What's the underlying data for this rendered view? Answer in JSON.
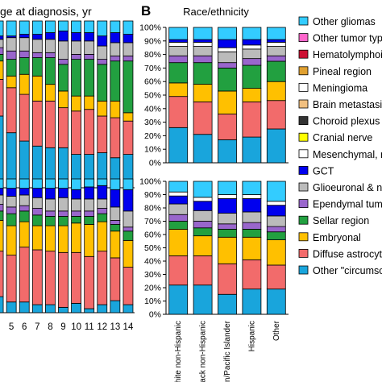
{
  "panel_a": {
    "title": "ge at diagnosis, yr"
  },
  "panel_b": {
    "letter": "B",
    "title": "Race/ethnicity"
  },
  "legend_entries": [
    {
      "label": "Other gliomas",
      "color": "#33CCFF",
      "icon": "swatch"
    },
    {
      "label": "Other tumor type",
      "color": "#FF66CC",
      "icon": "swatch"
    },
    {
      "label": "Hematolymphoid",
      "color": "#CC1133",
      "icon": "swatch"
    },
    {
      "label": "Pineal region",
      "color": "#E0A030",
      "icon": "swatch"
    },
    {
      "label": "Meningioma",
      "color": "#FFFFFF",
      "icon": "swatch"
    },
    {
      "label": "Brain metastasis",
      "color": "#F2C080",
      "icon": "swatch"
    },
    {
      "label": "Choroid plexus",
      "color": "#333333",
      "icon": "swatch"
    },
    {
      "label": "Cranial nerve",
      "color": "#FFFF00",
      "icon": "swatch"
    },
    {
      "label": "Mesenchymal, n",
      "color": "#FFFFFF",
      "icon": "swatch"
    },
    {
      "label": "GCT",
      "color": "#0000EE",
      "icon": "swatch"
    },
    {
      "label": "Glioeuronal & ne",
      "color": "#BBBBBB",
      "icon": "swatch"
    },
    {
      "label": "Ependymal tumo",
      "color": "#9966CC",
      "icon": "swatch"
    },
    {
      "label": "Sellar region",
      "color": "#22A040",
      "icon": "swatch"
    },
    {
      "label": "Embryonal",
      "color": "#FFC000",
      "icon": "swatch"
    },
    {
      "label": "Diffuse astrocyti",
      "color": "#F26B6B",
      "icon": "swatch"
    },
    {
      "label": "Other \"circumscr",
      "color": "#19A5DC",
      "icon": "swatch"
    }
  ],
  "chart_data": [
    {
      "type": "bar",
      "stacked": true,
      "panel": "A-top",
      "title": "ge at diagnosis, yr",
      "categories": [
        "",
        "5",
        "6",
        "7",
        "8",
        "9",
        "10",
        "11",
        "12",
        "13",
        "14"
      ],
      "ylim": [
        0,
        100
      ],
      "series": [
        {
          "name": "Other \"circumscr",
          "color": "#19A5DC",
          "values": [
            43,
            33,
            28,
            25,
            24,
            24,
            20,
            20,
            21,
            18,
            20
          ]
        },
        {
          "name": "Diffuse astrocyti",
          "color": "#F26B6B",
          "values": [
            22,
            27,
            28,
            27,
            28,
            24,
            26,
            27,
            22,
            24,
            20
          ]
        },
        {
          "name": "Embryonal",
          "color": "#FFC000",
          "values": [
            11,
            7,
            12,
            15,
            10,
            10,
            9,
            8,
            9,
            10,
            5
          ]
        },
        {
          "name": "Sellar region",
          "color": "#22A040",
          "values": [
            4,
            10,
            10,
            11,
            16,
            16,
            22,
            22,
            22,
            24,
            31
          ]
        },
        {
          "name": "Ependymal tumo",
          "color": "#9966CC",
          "values": [
            4,
            5,
            4,
            3,
            3,
            3,
            3,
            3,
            3,
            3,
            3
          ]
        },
        {
          "name": "Glioeuronal & ne",
          "color": "#BBBBBB",
          "values": [
            5,
            8,
            8,
            8,
            8,
            11,
            8,
            8,
            8,
            8,
            8
          ]
        },
        {
          "name": "GCT",
          "color": "#0000EE",
          "values": [
            2,
            1,
            2,
            3,
            4,
            6,
            5,
            5,
            6,
            6,
            5
          ]
        },
        {
          "name": "Other gliomas",
          "color": "#33CCFF",
          "values": [
            9,
            9,
            8,
            8,
            7,
            6,
            7,
            7,
            9,
            7,
            8
          ]
        }
      ]
    },
    {
      "type": "bar",
      "stacked": true,
      "panel": "A-bottom",
      "categories": [
        "",
        "5",
        "6",
        "7",
        "8",
        "9",
        "10",
        "11",
        "12",
        "13",
        "14"
      ],
      "ylim": [
        0,
        100
      ],
      "series": [
        {
          "name": "Other \"circumscr",
          "color": "#19A5DC",
          "values": [
            12,
            8,
            8,
            6,
            6,
            4,
            7,
            3,
            6,
            9,
            6
          ]
        },
        {
          "name": "Diffuse astrocyti",
          "color": "#F26B6B",
          "values": [
            34,
            35,
            41,
            41,
            40,
            41,
            38,
            39,
            40,
            32,
            28
          ]
        },
        {
          "name": "Embryonal",
          "color": "#FFC000",
          "values": [
            23,
            22,
            19,
            18,
            19,
            20,
            22,
            24,
            22,
            20,
            20
          ]
        },
        {
          "name": "Sellar region",
          "color": "#22A040",
          "values": [
            7,
            9,
            8,
            8,
            7,
            7,
            5,
            6,
            6,
            5,
            7
          ]
        },
        {
          "name": "Ependymal tumo",
          "color": "#9966CC",
          "values": [
            5,
            5,
            4,
            5,
            4,
            4,
            4,
            4,
            4,
            3,
            3
          ]
        },
        {
          "name": "Glioeuronal & ne",
          "color": "#BBBBBB",
          "values": [
            7,
            8,
            8,
            8,
            9,
            10,
            9,
            9,
            7,
            10,
            12
          ]
        },
        {
          "name": "GCT",
          "color": "#0000EE",
          "values": [
            5,
            6,
            5,
            7,
            8,
            7,
            7,
            9,
            10,
            13,
            16
          ]
        },
        {
          "name": "Other gliomas",
          "color": "#33CCFF",
          "values": [
            7,
            7,
            7,
            7,
            7,
            7,
            8,
            6,
            5,
            8,
            8
          ]
        }
      ]
    },
    {
      "type": "bar",
      "stacked": true,
      "panel": "B-top",
      "title": "Race/ethnicity",
      "categories": [
        "White non-Hispanic",
        "Black non-Hispanic",
        "Asian/Pacific Islander",
        "Hispanic",
        "Other"
      ],
      "ylim": [
        0,
        100
      ],
      "yticks": [
        "0%",
        "10%",
        "20%",
        "30%",
        "40%",
        "50%",
        "60%",
        "70%",
        "80%",
        "90%",
        "100%"
      ],
      "series": [
        {
          "name": "Other \"circumscr",
          "color": "#19A5DC",
          "values": [
            26,
            21,
            17,
            19,
            25
          ]
        },
        {
          "name": "Diffuse astrocyti",
          "color": "#F26B6B",
          "values": [
            23,
            24,
            19,
            26,
            21
          ]
        },
        {
          "name": "Embryonal",
          "color": "#FFC000",
          "values": [
            10,
            13,
            17,
            10,
            14
          ]
        },
        {
          "name": "Sellar region",
          "color": "#22A040",
          "values": [
            15,
            16,
            17,
            17,
            15
          ]
        },
        {
          "name": "Ependymal tumo",
          "color": "#9966CC",
          "values": [
            5,
            5,
            4,
            5,
            4
          ]
        },
        {
          "name": "Glioeuronal & ne",
          "color": "#BBBBBB",
          "values": [
            7,
            7,
            8,
            7,
            7
          ]
        },
        {
          "name": "Meningioma",
          "color": "#FFFFFF",
          "values": [
            3,
            3,
            3,
            3,
            3
          ]
        },
        {
          "name": "GCT",
          "color": "#0000EE",
          "values": [
            2,
            2,
            6,
            4,
            2
          ]
        },
        {
          "name": "Other gliomas",
          "color": "#33CCFF",
          "values": [
            9,
            9,
            9,
            9,
            9
          ]
        }
      ]
    },
    {
      "type": "bar",
      "stacked": true,
      "panel": "B-bottom",
      "categories": [
        "White non-Hispanic",
        "Black non-Hispanic",
        "Asian/Pacific Islander",
        "Hispanic",
        "Other"
      ],
      "xlabels": [
        "White non-Hispanic",
        "Black non-Hispanic",
        "Asian/Pacific Islander",
        "Hispanic",
        "Other"
      ],
      "ylim": [
        0,
        100
      ],
      "yticks": [
        "0%",
        "10%",
        "20%",
        "30%",
        "40%",
        "50%",
        "60%",
        "70%",
        "80%",
        "90%",
        "100%"
      ],
      "series": [
        {
          "name": "Other \"circumscr",
          "color": "#19A5DC",
          "values": [
            22,
            22,
            15,
            19,
            19
          ]
        },
        {
          "name": "Diffuse astrocyti",
          "color": "#F26B6B",
          "values": [
            22,
            22,
            23,
            22,
            18
          ]
        },
        {
          "name": "Embryonal",
          "color": "#FFC000",
          "values": [
            20,
            15,
            20,
            17,
            19
          ]
        },
        {
          "name": "Sellar region",
          "color": "#22A040",
          "values": [
            6,
            6,
            6,
            6,
            6
          ]
        },
        {
          "name": "Ependymal tumo",
          "color": "#9966CC",
          "values": [
            5,
            5,
            4,
            5,
            4
          ]
        },
        {
          "name": "Glioeuronal & ne",
          "color": "#BBBBBB",
          "values": [
            8,
            8,
            8,
            8,
            8
          ]
        },
        {
          "name": "GCT",
          "color": "#0000EE",
          "values": [
            6,
            7,
            11,
            10,
            8
          ]
        },
        {
          "name": "Meningioma",
          "color": "#FFFFFF",
          "values": [
            3,
            3,
            3,
            3,
            3
          ]
        },
        {
          "name": "Other gliomas",
          "color": "#33CCFF",
          "values": [
            8,
            12,
            10,
            10,
            15
          ]
        }
      ]
    }
  ]
}
